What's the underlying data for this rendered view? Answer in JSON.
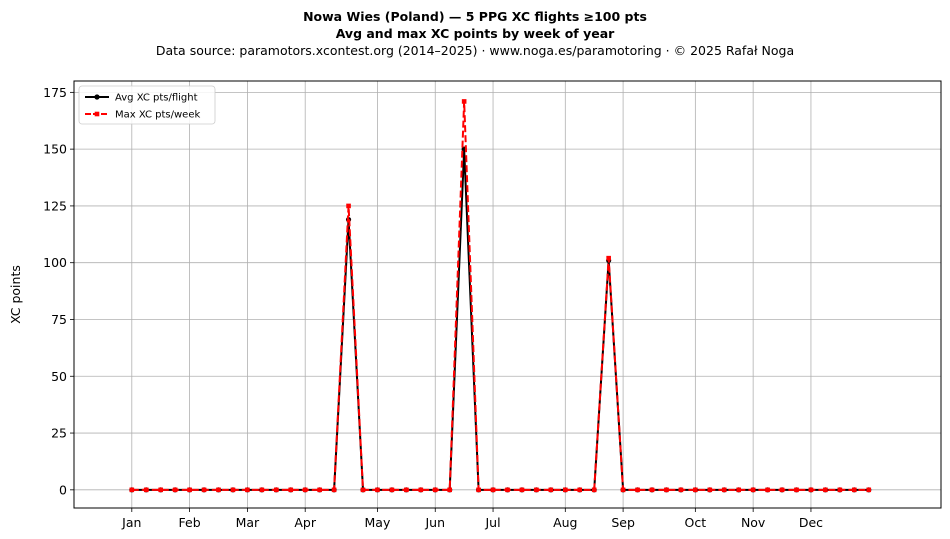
{
  "chart_data": {
    "type": "line",
    "title": "Nowa Wies (Poland)  —  5 PPG XC flights ≥100 pts",
    "subtitle": "Avg and max XC points by week of year",
    "source_note": "Data source: paramotors.xcontest.org (2014–2025)  ·  www.noga.es/paramotoring  ·  © 2025 Rafał Noga",
    "xlabel": "",
    "ylabel": "XC points",
    "xlim": [
      -4,
      56
    ],
    "ylim": [
      -8,
      180
    ],
    "yticks": [
      0,
      25,
      50,
      75,
      100,
      125,
      150,
      175
    ],
    "month_ticks": [
      {
        "label": "Jan",
        "week": 0
      },
      {
        "label": "Feb",
        "week": 4
      },
      {
        "label": "Mar",
        "week": 8
      },
      {
        "label": "Apr",
        "week": 12
      },
      {
        "label": "May",
        "week": 17
      },
      {
        "label": "Jun",
        "week": 21
      },
      {
        "label": "Jul",
        "week": 25
      },
      {
        "label": "Aug",
        "week": 30
      },
      {
        "label": "Sep",
        "week": 34
      },
      {
        "label": "Oct",
        "week": 39
      },
      {
        "label": "Nov",
        "week": 43
      },
      {
        "label": "Dec",
        "week": 47
      }
    ],
    "grid": true,
    "legend_position": "top-left",
    "x": [
      0,
      1,
      2,
      3,
      4,
      5,
      6,
      7,
      8,
      9,
      10,
      11,
      12,
      13,
      14,
      15,
      16,
      17,
      18,
      19,
      20,
      21,
      22,
      23,
      24,
      25,
      26,
      27,
      28,
      29,
      30,
      31,
      32,
      33,
      34,
      35,
      36,
      37,
      38,
      39,
      40,
      41,
      42,
      43,
      44,
      45,
      46,
      47,
      48,
      49,
      50,
      51
    ],
    "series": [
      {
        "name": "Avg XC pts/flight",
        "color": "#000000",
        "marker": "circle",
        "values": [
          0,
          0,
          0,
          0,
          0,
          0,
          0,
          0,
          0,
          0,
          0,
          0,
          0,
          0,
          0,
          119,
          0,
          0,
          0,
          0,
          0,
          0,
          0,
          150,
          0,
          0,
          0,
          0,
          0,
          0,
          0,
          0,
          0,
          101,
          0,
          0,
          0,
          0,
          0,
          0,
          0,
          0,
          0,
          0,
          0,
          0,
          0,
          0,
          0,
          0,
          0,
          0
        ]
      },
      {
        "name": "Max XC pts/week",
        "color": "#ff0000",
        "marker": "square",
        "dashed": true,
        "values": [
          0,
          0,
          0,
          0,
          0,
          0,
          0,
          0,
          0,
          0,
          0,
          0,
          0,
          0,
          0,
          125,
          0,
          0,
          0,
          0,
          0,
          0,
          0,
          171,
          0,
          0,
          0,
          0,
          0,
          0,
          0,
          0,
          0,
          102,
          0,
          0,
          0,
          0,
          0,
          0,
          0,
          0,
          0,
          0,
          0,
          0,
          0,
          0,
          0,
          0,
          0,
          0
        ]
      }
    ]
  }
}
